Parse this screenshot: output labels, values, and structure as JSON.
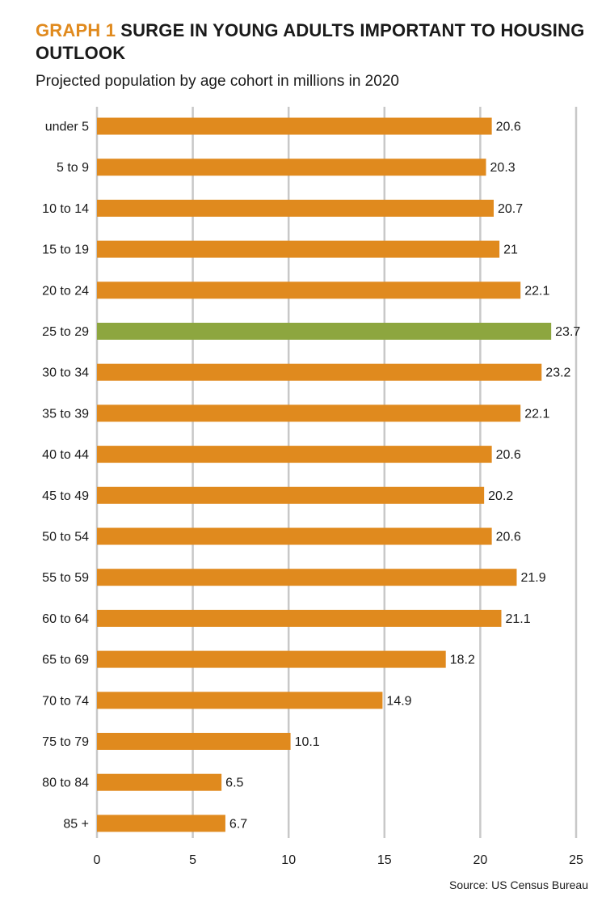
{
  "title": {
    "label": "GRAPH 1",
    "text": "SURGE IN YOUNG ADULTS IMPORTANT TO HOUSING OUTLOOK"
  },
  "subtitle": "Projected population by age cohort in millions in 2020",
  "source": "Source: US Census Bureau",
  "colors": {
    "bar": "#e08a1e",
    "highlight": "#8da63f",
    "grid": "#c8c8c8",
    "title_accent": "#e08a1e"
  },
  "chart_data": {
    "type": "bar",
    "orientation": "horizontal",
    "categories": [
      "under 5",
      "5 to 9",
      "10 to 14",
      "15 to 19",
      "20 to 24",
      "25 to 29",
      "30 to 34",
      "35 to 39",
      "40 to 44",
      "45 to 49",
      "50 to 54",
      "55 to 59",
      "60 to 64",
      "65 to 69",
      "70 to 74",
      "75 to 79",
      "80 to 84",
      "85 +"
    ],
    "values": [
      20.6,
      20.3,
      20.7,
      21,
      22.1,
      23.7,
      23.2,
      22.1,
      20.6,
      20.2,
      20.6,
      21.9,
      21.1,
      18.2,
      14.9,
      10.1,
      6.5,
      6.7
    ],
    "value_labels": [
      "20.6",
      "20.3",
      "20.7",
      "21",
      "22.1",
      "23.7",
      "23.2",
      "22.1",
      "20.6",
      "20.2",
      "20.6",
      "21.9",
      "21.1",
      "18.2",
      "14.9",
      "10.1",
      "6.5",
      "6.7"
    ],
    "highlight_category": "25 to 29",
    "xlim": [
      0,
      25
    ],
    "x_ticks": [
      0,
      5,
      10,
      15,
      20,
      25
    ],
    "x_tick_labels": [
      "0",
      "5",
      "10",
      "15",
      "20",
      "25"
    ],
    "grid": true
  }
}
